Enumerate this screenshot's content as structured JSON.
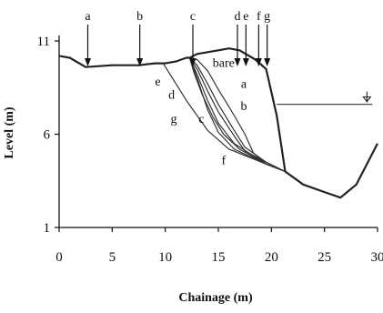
{
  "chart_data": {
    "type": "line",
    "title": "",
    "xlabel": "Chainage (m)",
    "ylabel": "Level (m)",
    "xlim": [
      0,
      30
    ],
    "ylim": [
      1,
      11
    ],
    "xticks": [
      0,
      5,
      10,
      15,
      20,
      25,
      30
    ],
    "yticks": [
      1,
      6,
      11
    ],
    "grid": false,
    "series": [
      {
        "name": "",
        "x": [
          0,
          1,
          2.5,
          5,
          7.5,
          9,
          10,
          11,
          11.5,
          12,
          12.3,
          13,
          14,
          15,
          16,
          17,
          18.5,
          19.5,
          20.5,
          21.3,
          23,
          25,
          26.5,
          28,
          30
        ],
        "y": [
          10.2,
          10.1,
          9.6,
          9.7,
          9.7,
          9.8,
          9.8,
          9.9,
          10.0,
          10.1,
          10.1,
          10.3,
          10.4,
          10.5,
          10.6,
          10.5,
          10.0,
          9.5,
          7.0,
          4.0,
          3.3,
          2.9,
          2.6,
          3.3,
          5.5
        ]
      },
      {
        "name": "bare",
        "x": [
          12.3,
          13,
          14,
          15,
          16.5,
          17.5,
          18.3,
          19.5,
          21.3
        ],
        "y": [
          10.1,
          10.0,
          9.4,
          8.4,
          7.0,
          6.0,
          5.0,
          4.4,
          4.0
        ]
      },
      {
        "name": "a",
        "x": [
          12.3,
          13,
          14,
          15,
          16.5,
          17.5,
          19.5,
          21.3
        ],
        "y": [
          10.1,
          9.7,
          8.7,
          7.6,
          6.2,
          5.3,
          4.5,
          4.0
        ]
      },
      {
        "name": "b",
        "x": [
          12.3,
          13,
          14,
          15,
          16.5,
          17.5,
          19.5,
          21.3
        ],
        "y": [
          10.1,
          9.5,
          8.3,
          7.2,
          5.9,
          5.1,
          4.5,
          4.0
        ]
      },
      {
        "name": "c",
        "x": [
          12.3,
          13,
          14,
          15,
          16.5,
          19.5,
          21.3
        ],
        "y": [
          10.1,
          9.2,
          7.8,
          6.6,
          5.5,
          4.4,
          4.0
        ]
      },
      {
        "name": "d",
        "x": [
          12.3,
          12.7,
          13.5,
          14.5,
          15.5,
          17,
          19.5,
          21.3
        ],
        "y": [
          10.1,
          9.3,
          8.1,
          6.9,
          6.0,
          5.2,
          4.4,
          4.0
        ]
      },
      {
        "name": "e",
        "x": [
          12.3,
          13,
          14,
          15,
          16.5,
          19.5,
          21.3
        ],
        "y": [
          10.1,
          9.0,
          7.3,
          6.1,
          5.2,
          4.4,
          4.0
        ]
      },
      {
        "name": "f",
        "x": [
          9.8,
          12,
          14,
          16,
          19.5,
          21.3
        ],
        "y": [
          9.8,
          7.8,
          6.2,
          5.2,
          4.4,
          4.0
        ]
      },
      {
        "name": "g",
        "x": [
          20.5,
          29.5
        ],
        "y": [
          7.6,
          7.6
        ]
      }
    ],
    "curve_labels": [
      {
        "text": "bare",
        "x": 15.5,
        "y": 9.6
      },
      {
        "text": "a",
        "x": 17.4,
        "y": 8.5
      },
      {
        "text": "b",
        "x": 17.4,
        "y": 7.3
      },
      {
        "text": "c",
        "x": 13.4,
        "y": 6.6
      },
      {
        "text": "d",
        "x": 10.6,
        "y": 7.9
      },
      {
        "text": "e",
        "x": 9.3,
        "y": 8.6
      },
      {
        "text": "f",
        "x": 15.5,
        "y": 4.4
      },
      {
        "text": "g",
        "x": 10.8,
        "y": 6.6
      }
    ],
    "section_markers": [
      {
        "text": "a",
        "x": 2.7
      },
      {
        "text": "b",
        "x": 7.6
      },
      {
        "text": "c",
        "x": 12.6
      },
      {
        "text": "d",
        "x": 16.8
      },
      {
        "text": "e",
        "x": 17.6
      },
      {
        "text": "f",
        "x": 18.8
      },
      {
        "text": "g",
        "x": 19.6
      }
    ],
    "water_level_marker": {
      "x": 29.0,
      "y": 7.7
    }
  }
}
